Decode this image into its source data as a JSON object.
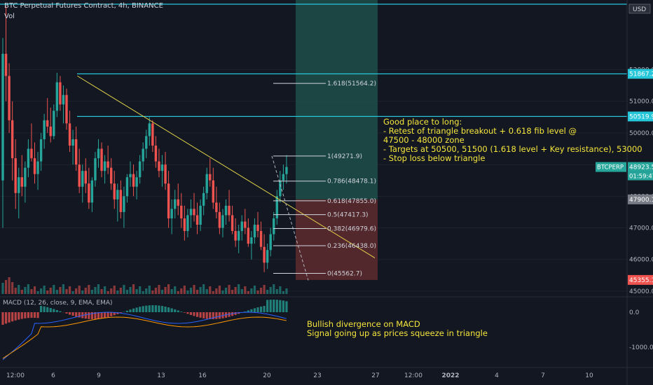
{
  "header": {
    "title": "BTC Perpetual Futures Contract, 4h, BINANCE",
    "volume_label": "Vol",
    "currency_badge": "USD"
  },
  "macd": {
    "label": "MACD (12, 26, close, 9, EMA, EMA)"
  },
  "notes": {
    "long_setup": "Good place to long:\n- Retest of triangle breakout + 0.618 fib level @\n47500 - 48000 zone\n- Targets at 50500, 51500 (1.618 level + Key resistance), 53000\n- Stop loss below triangle",
    "macd_note": "Bullish divergence on MACD\nSignal going up as prices squeeze in triangle"
  },
  "colors": {
    "background": "#131722",
    "bull": "#26a69a",
    "bear": "#ef5350",
    "trendline": "#e3d44a",
    "resistance": "#26c6da",
    "annotation": "#f5e63c",
    "target_zone": "#1f4f4a",
    "stop_zone": "#5a2a2e",
    "macd_line": "#2962ff",
    "signal_line": "#ff9800"
  },
  "chart_data": {
    "type": "candlestick",
    "symbol": "BTC Perpetual Futures Contract",
    "interval": "4h",
    "exchange": "BINANCE",
    "price_axis": {
      "ticks": [
        "46000.0",
        "47000.0",
        "48000.0",
        "49000.0",
        "50000.0",
        "51000.0",
        "52000.0",
        "45000.0"
      ],
      "range": [
        44800,
        54200
      ]
    },
    "time_axis": {
      "ticks": [
        "12:00",
        "6",
        "9",
        "13",
        "16",
        "20",
        "23",
        "27",
        "12:00",
        "2022",
        "4",
        "7",
        "10"
      ]
    },
    "price_labels": [
      {
        "text": "51867.2",
        "value": 51867.2
      },
      {
        "text": "50519.9",
        "value": 50519.9
      },
      {
        "text": "48923.5",
        "value": 48923.5,
        "symbol": "BTCPERP",
        "countdown": "01:59:47"
      },
      {
        "text": "47900.1",
        "value": 47900.1
      },
      {
        "text": "45355.1",
        "value": 45355.1
      }
    ],
    "resistance_levels": [
      53000,
      51867.2,
      50519.9
    ],
    "fibonacci": [
      {
        "label": "1.618(51564.2)",
        "value": 51564.2
      },
      {
        "label": "1(49271.9)",
        "value": 49271.9
      },
      {
        "label": "0.786(48478.1)",
        "value": 48478.1
      },
      {
        "label": "0.618(47855.0)",
        "value": 47855.0
      },
      {
        "label": "0.5(47417.3)",
        "value": 47417.3
      },
      {
        "label": "0.382(46979.6)",
        "value": 46979.6
      },
      {
        "label": "0.236(46438.0)",
        "value": 46438.0
      },
      {
        "label": "0(45562.7)",
        "value": 45562.7
      }
    ],
    "triangle_trendline": [
      [
        8,
        51800
      ],
      [
        28,
        46050
      ]
    ],
    "target_zone": {
      "from": 47900.1,
      "to": 54200
    },
    "stop_zone": {
      "from": 45355.1,
      "to": 47900.1
    },
    "candles": [
      [
        48500,
        53000,
        47000,
        52500
      ],
      [
        52500,
        54000,
        51000,
        51800
      ],
      [
        51800,
        52200,
        50000,
        50400
      ],
      [
        50400,
        51000,
        48500,
        49200
      ],
      [
        49200,
        49800,
        47600,
        48100
      ],
      [
        48100,
        48900,
        47300,
        48600
      ],
      [
        48600,
        49300,
        48000,
        48300
      ],
      [
        48300,
        49100,
        47800,
        48900
      ],
      [
        48900,
        49800,
        48600,
        49500
      ],
      [
        49500,
        50300,
        49100,
        49200
      ],
      [
        49200,
        49700,
        48400,
        48700
      ],
      [
        48700,
        49400,
        48200,
        49100
      ],
      [
        49100,
        50000,
        48800,
        49800
      ],
      [
        49800,
        50600,
        49500,
        50400
      ],
      [
        50400,
        51100,
        50000,
        50200
      ],
      [
        50200,
        50800,
        49700,
        49900
      ],
      [
        49900,
        50900,
        49800,
        50700
      ],
      [
        50700,
        51900,
        50500,
        51600
      ],
      [
        51600,
        51800,
        50700,
        50900
      ],
      [
        50900,
        51500,
        50300,
        51200
      ],
      [
        51200,
        51400,
        50100,
        50300
      ],
      [
        50300,
        50700,
        49400,
        49600
      ],
      [
        49600,
        50100,
        49000,
        49800
      ],
      [
        49800,
        50200,
        48800,
        49000
      ],
      [
        49000,
        49500,
        48100,
        48300
      ],
      [
        48300,
        49000,
        47800,
        48800
      ],
      [
        48800,
        49200,
        48100,
        48400
      ],
      [
        48400,
        48900,
        47600,
        47800
      ],
      [
        47800,
        48600,
        47500,
        48500
      ],
      [
        48500,
        49400,
        48300,
        49200
      ],
      [
        49200,
        49800,
        48900,
        49500
      ],
      [
        49500,
        49700,
        48600,
        48800
      ],
      [
        48800,
        49300,
        48400,
        49100
      ],
      [
        49100,
        49600,
        48700,
        48900
      ],
      [
        48900,
        49200,
        48200,
        48400
      ],
      [
        48400,
        48800,
        47600,
        47900
      ],
      [
        47900,
        48400,
        47200,
        48200
      ],
      [
        48200,
        48500,
        47300,
        47500
      ],
      [
        47500,
        48300,
        47000,
        48000
      ],
      [
        48000,
        48700,
        47800,
        48600
      ],
      [
        48600,
        49100,
        48300,
        48700
      ],
      [
        48700,
        49000,
        48000,
        48300
      ],
      [
        48300,
        48800,
        47900,
        48600
      ],
      [
        48600,
        49300,
        48400,
        49100
      ],
      [
        49100,
        49700,
        48800,
        49500
      ],
      [
        49500,
        50100,
        49200,
        49900
      ],
      [
        49900,
        50500,
        49600,
        50300
      ],
      [
        50300,
        50400,
        49400,
        49600
      ],
      [
        49600,
        49900,
        48900,
        49100
      ],
      [
        49100,
        49500,
        48600,
        48800
      ],
      [
        48800,
        49300,
        48300,
        49000
      ],
      [
        49000,
        49400,
        48200,
        48400
      ],
      [
        48400,
        48800,
        47000,
        47300
      ],
      [
        47300,
        47900,
        46800,
        47600
      ],
      [
        47600,
        48200,
        47300,
        47900
      ],
      [
        47900,
        48400,
        47400,
        47700
      ],
      [
        47700,
        48100,
        47000,
        47300
      ],
      [
        47300,
        47700,
        46600,
        46900
      ],
      [
        46900,
        47600,
        46700,
        47400
      ],
      [
        47400,
        47900,
        47000,
        47600
      ],
      [
        47600,
        48100,
        47200,
        47400
      ],
      [
        47400,
        47800,
        46800,
        47100
      ],
      [
        47100,
        47900,
        46900,
        47700
      ],
      [
        47700,
        48300,
        47400,
        48100
      ],
      [
        48100,
        48900,
        47900,
        48700
      ],
      [
        48700,
        49200,
        48300,
        48500
      ],
      [
        48500,
        48900,
        47600,
        47800
      ],
      [
        47800,
        48300,
        47300,
        47500
      ],
      [
        47500,
        47800,
        46800,
        47000
      ],
      [
        47000,
        47600,
        46700,
        47400
      ],
      [
        47400,
        47900,
        47100,
        47700
      ],
      [
        47700,
        48200,
        47200,
        47400
      ],
      [
        47400,
        47700,
        46800,
        46900
      ],
      [
        46900,
        47300,
        46400,
        46600
      ],
      [
        46600,
        47100,
        46200,
        46900
      ],
      [
        46900,
        47400,
        46600,
        47200
      ],
      [
        47200,
        47600,
        46800,
        47000
      ],
      [
        47000,
        47300,
        46400,
        46500
      ],
      [
        46500,
        46900,
        46000,
        46700
      ],
      [
        46700,
        47300,
        46500,
        47100
      ],
      [
        47100,
        47500,
        46700,
        46900
      ],
      [
        46900,
        47200,
        46300,
        46400
      ],
      [
        46400,
        46800,
        45600,
        45900
      ],
      [
        45900,
        46500,
        45700,
        46300
      ],
      [
        46300,
        47000,
        46100,
        46800
      ],
      [
        46800,
        47500,
        46600,
        47300
      ],
      [
        47300,
        48200,
        47100,
        48000
      ],
      [
        48000,
        48800,
        47800,
        48500
      ],
      [
        48500,
        49000,
        48200,
        48700
      ],
      [
        48700,
        49300,
        48400,
        48923.5
      ]
    ]
  }
}
